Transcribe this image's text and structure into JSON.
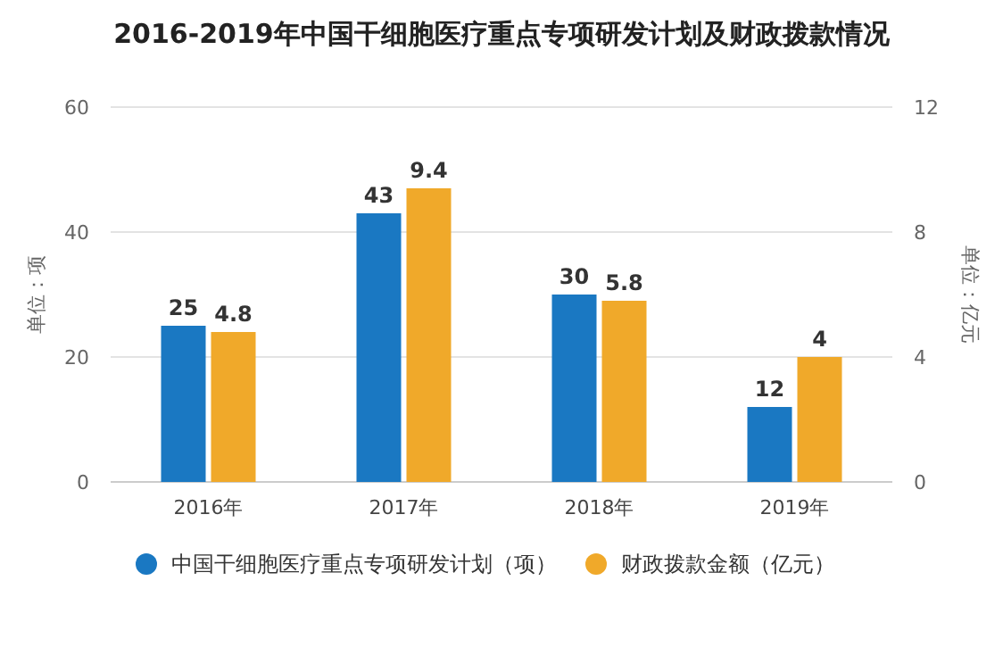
{
  "chart_data": {
    "type": "bar",
    "title": "2016-2019年中国干细胞医疗重点专项研发计划及财政拨款情况",
    "categories": [
      "2016年",
      "2017年",
      "2018年",
      "2019年"
    ],
    "series": [
      {
        "name": "中国干细胞医疗重点专项研发计划（项）",
        "color": "#1a78c2",
        "values": [
          25,
          43,
          30,
          12
        ]
      },
      {
        "name": "财政拨款金额（亿元）",
        "color": "#f0a92a",
        "values": [
          4.8,
          9.4,
          5.8,
          4
        ],
        "axis": "y2"
      }
    ],
    "ylabel": "单位：项",
    "y2label": "单位：亿元",
    "ylim": [
      0,
      60
    ],
    "yticks": [
      0,
      20,
      40,
      60
    ],
    "y2lim": [
      0,
      12
    ],
    "y2ticks": [
      0,
      4,
      8,
      12
    ],
    "grid": "y",
    "legend": "bottom",
    "data_labels": true
  }
}
